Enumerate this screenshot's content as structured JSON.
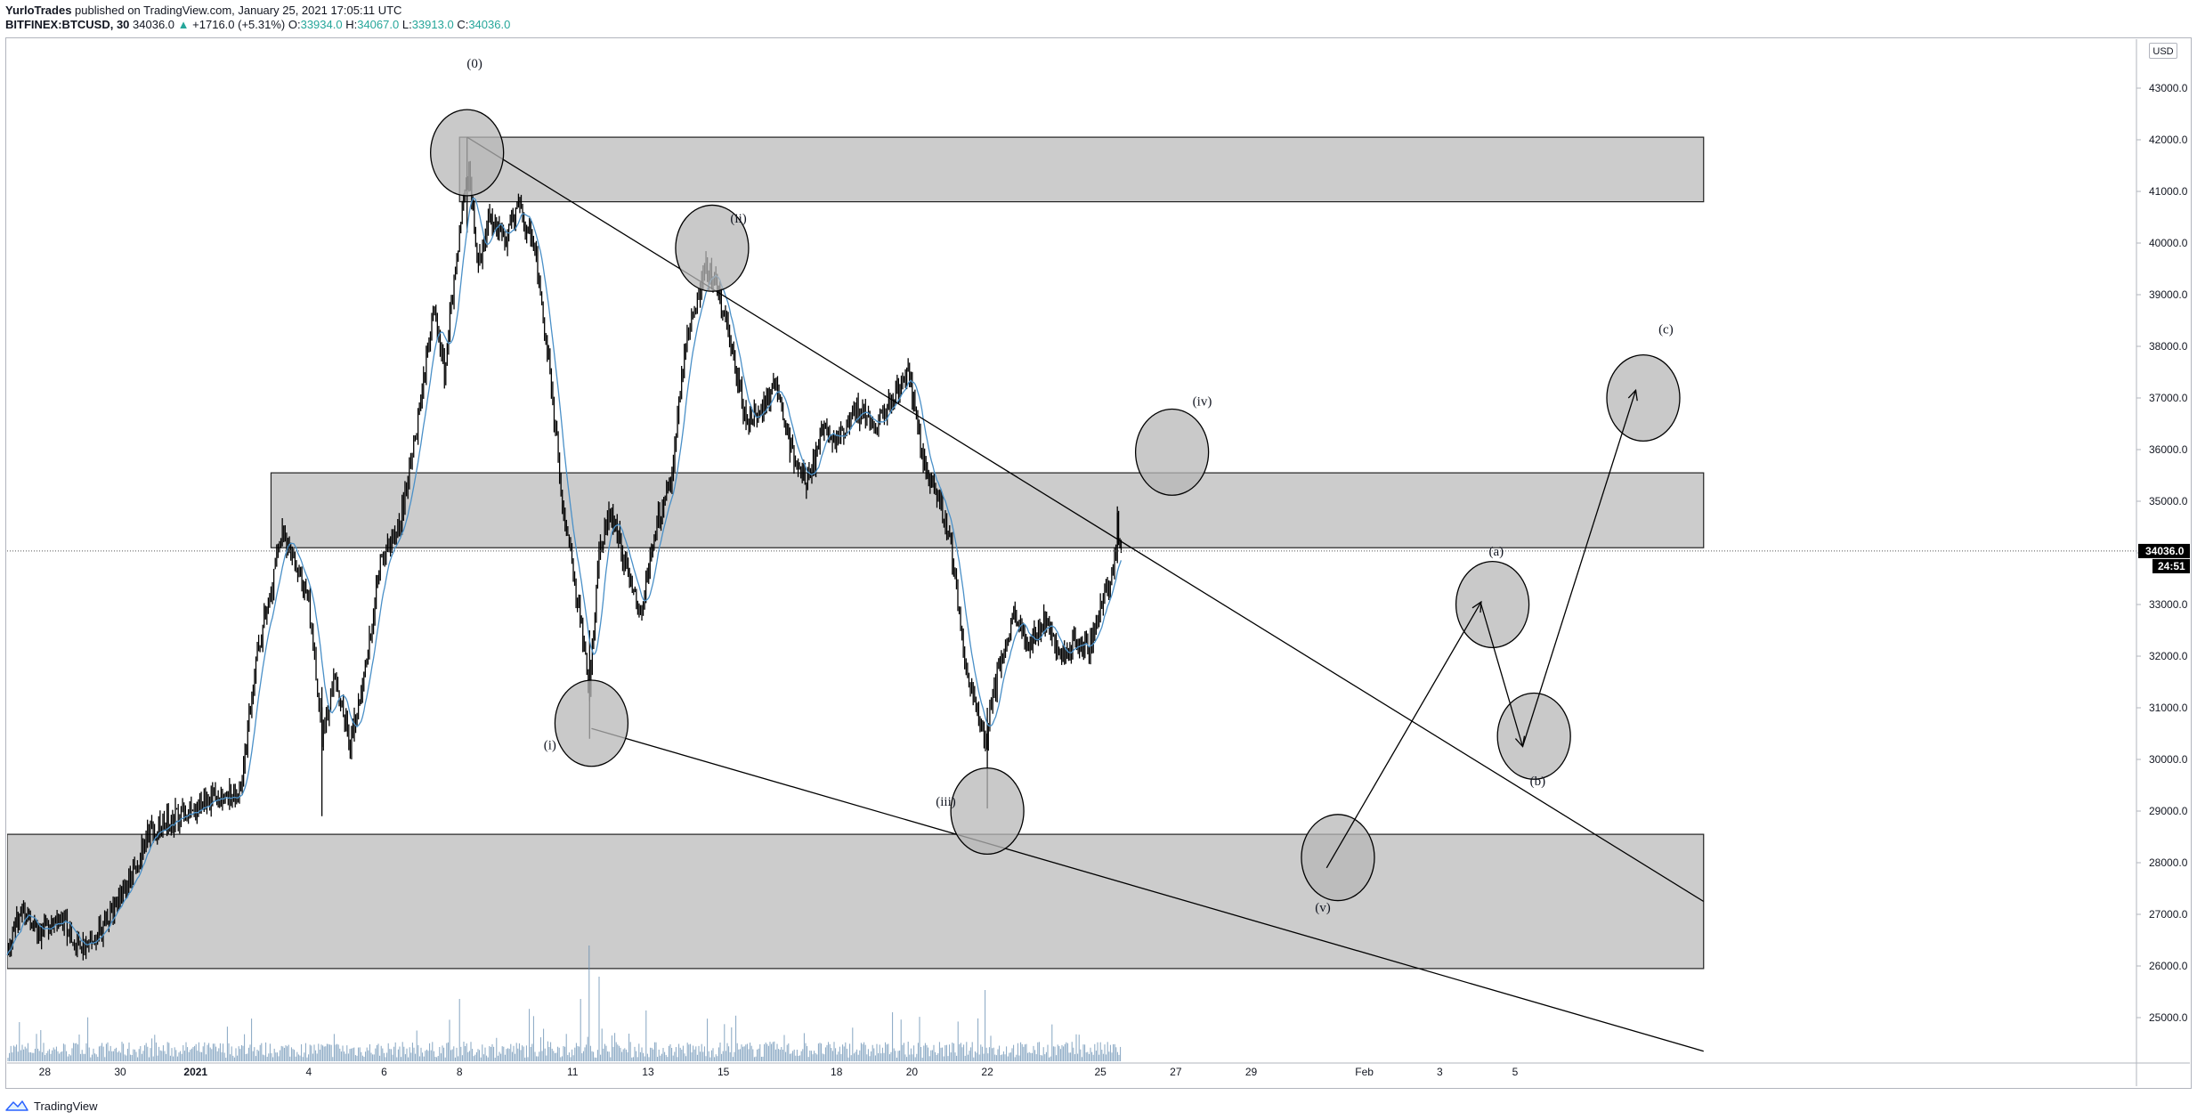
{
  "header": {
    "author": "YurloTrades",
    "published": "published on TradingView.com, January 25, 2021 17:05:11 UTC",
    "symbol": "BITFINEX:BTCUSD, 30",
    "last": "34036.0",
    "change_arrow": "▲",
    "change": "+1716.0 (+5.31%)",
    "o_label": "O:",
    "o_value": "33934.0",
    "h_label": "H:",
    "h_value": "34067.0",
    "l_label": "L:",
    "l_value": "33913.0",
    "c_label": "C:",
    "c_value": "34036.0"
  },
  "footer": {
    "brand": "TradingView",
    "logo_icon": "tradingview-logo-icon"
  },
  "colors": {
    "candle": "#000000",
    "ma_line": "#4a90c8",
    "zone_fill": "#cccccc",
    "circle_fill": "#b7b7b7",
    "volume": "#5d87ad",
    "price_label_bg": "#000000",
    "grid_axis": "#b2b5be"
  },
  "chart_data": {
    "type": "candlestick",
    "currency_label": "USD",
    "last_price_label": "34036.0",
    "countdown_label": "24:51",
    "x_axis": {
      "start_date": "2020-12-27",
      "end_date": "2021-02-10",
      "tick_labels": [
        {
          "label": "28",
          "date": "2020-12-28"
        },
        {
          "label": "30",
          "date": "2020-12-30"
        },
        {
          "label": "2021",
          "date": "2021-01-01"
        },
        {
          "label": "4",
          "date": "2021-01-04"
        },
        {
          "label": "6",
          "date": "2021-01-06"
        },
        {
          "label": "8",
          "date": "2021-01-08"
        },
        {
          "label": "11",
          "date": "2021-01-11"
        },
        {
          "label": "13",
          "date": "2021-01-13"
        },
        {
          "label": "15",
          "date": "2021-01-15"
        },
        {
          "label": "18",
          "date": "2021-01-18"
        },
        {
          "label": "20",
          "date": "2021-01-20"
        },
        {
          "label": "22",
          "date": "2021-01-22"
        },
        {
          "label": "25",
          "date": "2021-01-25"
        },
        {
          "label": "27",
          "date": "2021-01-27"
        },
        {
          "label": "29",
          "date": "2021-01-29"
        },
        {
          "label": "Feb",
          "date": "2021-02-01"
        },
        {
          "label": "3",
          "date": "2021-02-03"
        },
        {
          "label": "5",
          "date": "2021-02-05"
        }
      ]
    },
    "y_axis": {
      "ylim": [
        24200,
        43800
      ],
      "ticks": [
        "25000.0",
        "26000.0",
        "27000.0",
        "28000.0",
        "29000.0",
        "30000.0",
        "31000.0",
        "32000.0",
        "33000.0",
        "34000.0",
        "35000.0",
        "36000.0",
        "37000.0",
        "38000.0",
        "39000.0",
        "40000.0",
        "41000.0",
        "42000.0",
        "43000.0"
      ]
    },
    "price_path": [
      {
        "date": "2020-12-27",
        "price": 26300
      },
      {
        "date": "2020-12-27.4",
        "price": 27200
      },
      {
        "date": "2020-12-27.8",
        "price": 26600
      },
      {
        "date": "2020-12-28.4",
        "price": 27000
      },
      {
        "date": "2020-12-28.9",
        "price": 26400
      },
      {
        "date": "2020-12-29.4",
        "price": 26600
      },
      {
        "date": "2020-12-30",
        "price": 27300
      },
      {
        "date": "2020-12-30.8",
        "price": 28600
      },
      {
        "date": "2020-12-31.5",
        "price": 28900
      },
      {
        "date": "2021-01-01",
        "price": 29000
      },
      {
        "date": "2021-01-01.6",
        "price": 29300
      },
      {
        "date": "2021-01-02.2",
        "price": 29300
      },
      {
        "date": "2021-01-02.6",
        "price": 32000
      },
      {
        "date": "2021-01-03.0",
        "price": 33200
      },
      {
        "date": "2021-01-03.3",
        "price": 34400
      },
      {
        "date": "2021-01-03.6",
        "price": 33900
      },
      {
        "date": "2021-01-04.0",
        "price": 33100
      },
      {
        "date": "2021-01-04.35",
        "price": 30500
      },
      {
        "date": "2021-01-04.7",
        "price": 31600
      },
      {
        "date": "2021-01-05.1",
        "price": 30300
      },
      {
        "date": "2021-01-05.5",
        "price": 31800
      },
      {
        "date": "2021-01-05.9",
        "price": 33800
      },
      {
        "date": "2021-01-06.4",
        "price": 34500
      },
      {
        "date": "2021-01-06.9",
        "price": 36500
      },
      {
        "date": "2021-01-07.3",
        "price": 38800
      },
      {
        "date": "2021-01-07.6",
        "price": 37500
      },
      {
        "date": "2021-01-08.0",
        "price": 40200
      },
      {
        "date": "2021-01-08.25",
        "price": 41500
      },
      {
        "date": "2021-01-08.5",
        "price": 39500
      },
      {
        "date": "2021-01-08.8",
        "price": 40600
      },
      {
        "date": "2021-01-09.2",
        "price": 40000
      },
      {
        "date": "2021-01-09.6",
        "price": 40700
      },
      {
        "date": "2021-01-10.0",
        "price": 39800
      },
      {
        "date": "2021-01-10.4",
        "price": 37500
      },
      {
        "date": "2021-01-10.8",
        "price": 34500
      },
      {
        "date": "2021-01-11.2",
        "price": 32800
      },
      {
        "date": "2021-01-11.45",
        "price": 31200
      },
      {
        "date": "2021-01-11.7",
        "price": 34000
      },
      {
        "date": "2021-01-12.0",
        "price": 34800
      },
      {
        "date": "2021-01-12.4",
        "price": 33800
      },
      {
        "date": "2021-01-12.8",
        "price": 32800
      },
      {
        "date": "2021-01-13.2",
        "price": 34500
      },
      {
        "date": "2021-01-13.6",
        "price": 35400
      },
      {
        "date": "2021-01-14.0",
        "price": 38000
      },
      {
        "date": "2021-01-14.5",
        "price": 39600
      },
      {
        "date": "2021-01-14.8",
        "price": 39200
      },
      {
        "date": "2021-01-15.2",
        "price": 38000
      },
      {
        "date": "2021-01-15.6",
        "price": 36500
      },
      {
        "date": "2021-01-16.0",
        "price": 36800
      },
      {
        "date": "2021-01-16.4",
        "price": 37200
      },
      {
        "date": "2021-01-16.8",
        "price": 36000
      },
      {
        "date": "2021-01-17.2",
        "price": 35300
      },
      {
        "date": "2021-01-17.6",
        "price": 36300
      },
      {
        "date": "2021-01-18.0",
        "price": 36200
      },
      {
        "date": "2021-01-18.5",
        "price": 36800
      },
      {
        "date": "2021-01-19.0",
        "price": 36400
      },
      {
        "date": "2021-01-19.5",
        "price": 37000
      },
      {
        "date": "2021-01-19.9",
        "price": 37500
      },
      {
        "date": "2021-01-20.3",
        "price": 35800
      },
      {
        "date": "2021-01-20.7",
        "price": 35000
      },
      {
        "date": "2021-01-21.0",
        "price": 34300
      },
      {
        "date": "2021-01-21.4",
        "price": 32000
      },
      {
        "date": "2021-01-21.7",
        "price": 31000
      },
      {
        "date": "2021-01-21.95",
        "price": 30400
      },
      {
        "date": "2021-01-22.3",
        "price": 31800
      },
      {
        "date": "2021-01-22.7",
        "price": 32800
      },
      {
        "date": "2021-01-23.1",
        "price": 32200
      },
      {
        "date": "2021-01-23.5",
        "price": 32800
      },
      {
        "date": "2021-01-23.9",
        "price": 32000
      },
      {
        "date": "2021-01-24.3",
        "price": 32300
      },
      {
        "date": "2021-01-24.7",
        "price": 32200
      },
      {
        "date": "2021-01-25.0",
        "price": 33000
      },
      {
        "date": "2021-01-25.3",
        "price": 33600
      },
      {
        "date": "2021-01-25.45",
        "price": 34500
      },
      {
        "date": "2021-01-25.55",
        "price": 34036
      }
    ],
    "horizontal_zones": [
      {
        "from_date": "2021-01-08",
        "to_date": "2021-02-10",
        "low": 40800,
        "high": 42050
      },
      {
        "from_date": "2021-01-03",
        "to_date": "2021-02-10",
        "low": 34100,
        "high": 35550
      },
      {
        "from_date": "2020-12-27",
        "to_date": "2021-02-10",
        "low": 25950,
        "high": 28550
      }
    ],
    "trend_lines": [
      {
        "start": {
          "date": "2021-01-08.2",
          "price": 42050
        },
        "end": {
          "date": "2021-02-10",
          "price": 27250
        }
      },
      {
        "start": {
          "date": "2021-01-11.5",
          "price": 30600
        },
        "end": {
          "date": "2021-02-10",
          "price": 24350
        }
      }
    ],
    "projection_arrows": [
      {
        "start": {
          "date": "2021-01-31.0",
          "price": 27900
        },
        "end": {
          "date": "2021-02-04.1",
          "price": 33050
        }
      },
      {
        "start": {
          "date": "2021-02-04.1",
          "price": 33000
        },
        "end": {
          "date": "2021-02-05.2",
          "price": 30250
        }
      },
      {
        "start": {
          "date": "2021-02-05.2",
          "price": 30250
        },
        "end": {
          "date": "2021-02-08.2",
          "price": 37150
        }
      }
    ],
    "wave_markers": [
      {
        "label": "(0)",
        "date": "2021-01-08.2",
        "price": 41750,
        "label_date": "2021-01-08.4",
        "label_price": 43400
      },
      {
        "label": "(ii)",
        "date": "2021-01-14.7",
        "price": 39900,
        "label_date": "2021-01-15.4",
        "label_price": 40400
      },
      {
        "label": "(i)",
        "date": "2021-01-11.5",
        "price": 30700,
        "label_date": "2021-01-10.4",
        "label_price": 30200
      },
      {
        "label": "(iii)",
        "date": "2021-01-22.0",
        "price": 29000,
        "label_date": "2021-01-20.9",
        "label_price": 29100
      },
      {
        "label": "(iv)",
        "date": "2021-01-26.9",
        "price": 35950,
        "label_date": "2021-01-27.7",
        "label_price": 36850
      },
      {
        "label": "(v)",
        "date": "2021-01-31.3",
        "price": 28100,
        "label_date": "2021-01-30.9",
        "label_price": 27050
      },
      {
        "label": "(a)",
        "date": "2021-02-04.4",
        "price": 33000,
        "label_date": "2021-02-04.5",
        "label_price": 33950
      },
      {
        "label": "(b)",
        "date": "2021-02-05.5",
        "price": 30450,
        "label_date": "2021-02-05.6",
        "label_price": 29500
      },
      {
        "label": "(c)",
        "date": "2021-02-08.4",
        "price": 37000,
        "label_date": "2021-02-09.0",
        "label_price": 38250
      }
    ]
  }
}
